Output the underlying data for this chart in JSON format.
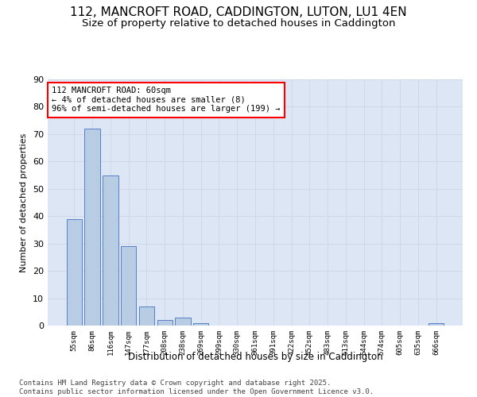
{
  "title1": "112, MANCROFT ROAD, CADDINGTON, LUTON, LU1 4EN",
  "title2": "Size of property relative to detached houses in Caddington",
  "xlabel": "Distribution of detached houses by size in Caddington",
  "ylabel": "Number of detached properties",
  "categories": [
    "55sqm",
    "86sqm",
    "116sqm",
    "147sqm",
    "177sqm",
    "208sqm",
    "238sqm",
    "269sqm",
    "299sqm",
    "330sqm",
    "361sqm",
    "391sqm",
    "422sqm",
    "452sqm",
    "483sqm",
    "513sqm",
    "544sqm",
    "574sqm",
    "605sqm",
    "635sqm",
    "666sqm"
  ],
  "values": [
    39,
    72,
    55,
    29,
    7,
    2,
    3,
    1,
    0,
    0,
    0,
    0,
    0,
    0,
    0,
    0,
    0,
    0,
    0,
    0,
    1
  ],
  "bar_color": "#b8cce4",
  "bar_edge_color": "#4472c4",
  "ylim": [
    0,
    90
  ],
  "yticks": [
    0,
    10,
    20,
    30,
    40,
    50,
    60,
    70,
    80,
    90
  ],
  "annotation_line1": "112 MANCROFT ROAD: 60sqm",
  "annotation_line2": "← 4% of detached houses are smaller (8)",
  "annotation_line3": "96% of semi-detached houses are larger (199) →",
  "annotation_box_color": "#ff0000",
  "annotation_box_bg": "#ffffff",
  "grid_color": "#d0d8e8",
  "bg_color": "#dce6f5",
  "footer_text": "Contains HM Land Registry data © Crown copyright and database right 2025.\nContains public sector information licensed under the Open Government Licence v3.0.",
  "title_fontsize": 11,
  "subtitle_fontsize": 9.5,
  "annotation_fontsize": 7.5,
  "footer_fontsize": 6.5
}
